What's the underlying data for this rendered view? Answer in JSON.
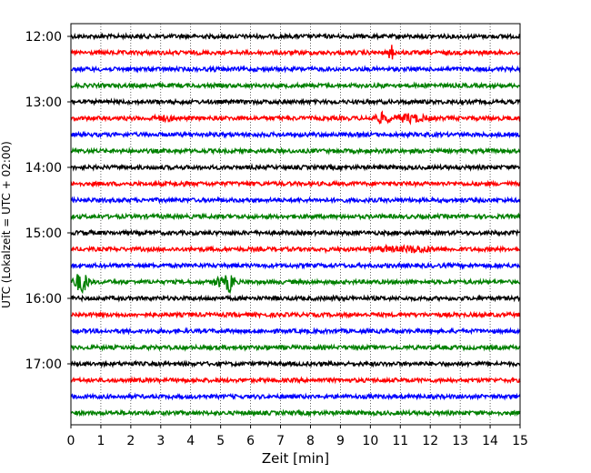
{
  "chart_data": {
    "type": "line",
    "title": "",
    "xlabel": "Zeit  [min]",
    "ylabel": "UTC (Lokalzeit = UTC + 02:00)",
    "xlim": [
      0,
      15
    ],
    "x_ticks": [
      0,
      1,
      2,
      3,
      4,
      5,
      6,
      7,
      8,
      9,
      10,
      11,
      12,
      13,
      14,
      15
    ],
    "x_tick_labels": [
      "0",
      "1",
      "2",
      "3",
      "4",
      "5",
      "6",
      "7",
      "8",
      "9",
      "10",
      "11",
      "12",
      "13",
      "14",
      "15"
    ],
    "y_tick_labels": [
      "12:00",
      "13:00",
      "14:00",
      "15:00",
      "16:00",
      "17:00"
    ],
    "grid": "vertical dotted",
    "colors": [
      "#000000",
      "#ff0000",
      "#0000ff",
      "#008000"
    ],
    "rows": [
      {
        "time": "12:00",
        "color": "#000000",
        "events": []
      },
      {
        "time": "12:15",
        "color": "#ff0000",
        "events": [
          {
            "x": 10.7,
            "amp": 11,
            "dur": 0.1
          }
        ]
      },
      {
        "time": "12:30",
        "color": "#0000ff",
        "events": [
          {
            "x": 4.8,
            "amp": 3,
            "dur": 0.4
          }
        ]
      },
      {
        "time": "12:45",
        "color": "#008000",
        "events": [
          {
            "x": 10.4,
            "amp": 3,
            "dur": 0.2
          }
        ]
      },
      {
        "time": "13:00",
        "color": "#000000",
        "events": []
      },
      {
        "time": "13:15",
        "color": "#ff0000",
        "events": [
          {
            "x": 3.1,
            "amp": 4,
            "dur": 0.8
          },
          {
            "x": 10.4,
            "amp": 7,
            "dur": 0.4
          },
          {
            "x": 11.3,
            "amp": 6,
            "dur": 0.8
          }
        ]
      },
      {
        "time": "13:30",
        "color": "#0000ff",
        "events": []
      },
      {
        "time": "13:45",
        "color": "#008000",
        "events": []
      },
      {
        "time": "14:00",
        "color": "#000000",
        "events": []
      },
      {
        "time": "14:15",
        "color": "#ff0000",
        "events": [
          {
            "x": 3.7,
            "amp": 3,
            "dur": 0.7
          }
        ]
      },
      {
        "time": "14:30",
        "color": "#0000ff",
        "events": []
      },
      {
        "time": "14:45",
        "color": "#008000",
        "events": [
          {
            "x": 4.9,
            "amp": 3,
            "dur": 0.2
          },
          {
            "x": 5.6,
            "amp": 3,
            "dur": 0.1
          }
        ]
      },
      {
        "time": "15:00",
        "color": "#000000",
        "events": [
          {
            "x": 0.5,
            "amp": 3,
            "dur": 0.8
          }
        ]
      },
      {
        "time": "15:15",
        "color": "#ff0000",
        "events": [
          {
            "x": 10.5,
            "amp": 4,
            "dur": 0.8
          },
          {
            "x": 11.5,
            "amp": 5,
            "dur": 1.0
          },
          {
            "x": 8.5,
            "amp": 3,
            "dur": 0.1
          }
        ]
      },
      {
        "time": "15:30",
        "color": "#0000ff",
        "events": [
          {
            "x": 0.3,
            "amp": 3,
            "dur": 0.1
          },
          {
            "x": 12.3,
            "amp": 3,
            "dur": 0.1
          }
        ]
      },
      {
        "time": "15:45",
        "color": "#008000",
        "events": [
          {
            "x": 0.35,
            "amp": 13,
            "dur": 0.3
          },
          {
            "x": 4.95,
            "amp": 7,
            "dur": 0.25
          },
          {
            "x": 5.3,
            "amp": 13,
            "dur": 0.2
          },
          {
            "x": 12.3,
            "amp": 3,
            "dur": 0.1
          }
        ]
      },
      {
        "time": "16:00",
        "color": "#000000",
        "events": [
          {
            "x": 8.8,
            "amp": 3,
            "dur": 0.5
          }
        ]
      },
      {
        "time": "16:15",
        "color": "#ff0000",
        "events": []
      },
      {
        "time": "16:30",
        "color": "#0000ff",
        "events": []
      },
      {
        "time": "16:45",
        "color": "#008000",
        "events": [
          {
            "x": 6.5,
            "amp": 3,
            "dur": 0.2
          }
        ]
      },
      {
        "time": "17:00",
        "color": "#000000",
        "events": []
      },
      {
        "time": "17:15",
        "color": "#ff0000",
        "events": []
      },
      {
        "time": "17:30",
        "color": "#0000ff",
        "events": []
      },
      {
        "time": "17:45",
        "color": "#008000",
        "events": []
      }
    ]
  }
}
